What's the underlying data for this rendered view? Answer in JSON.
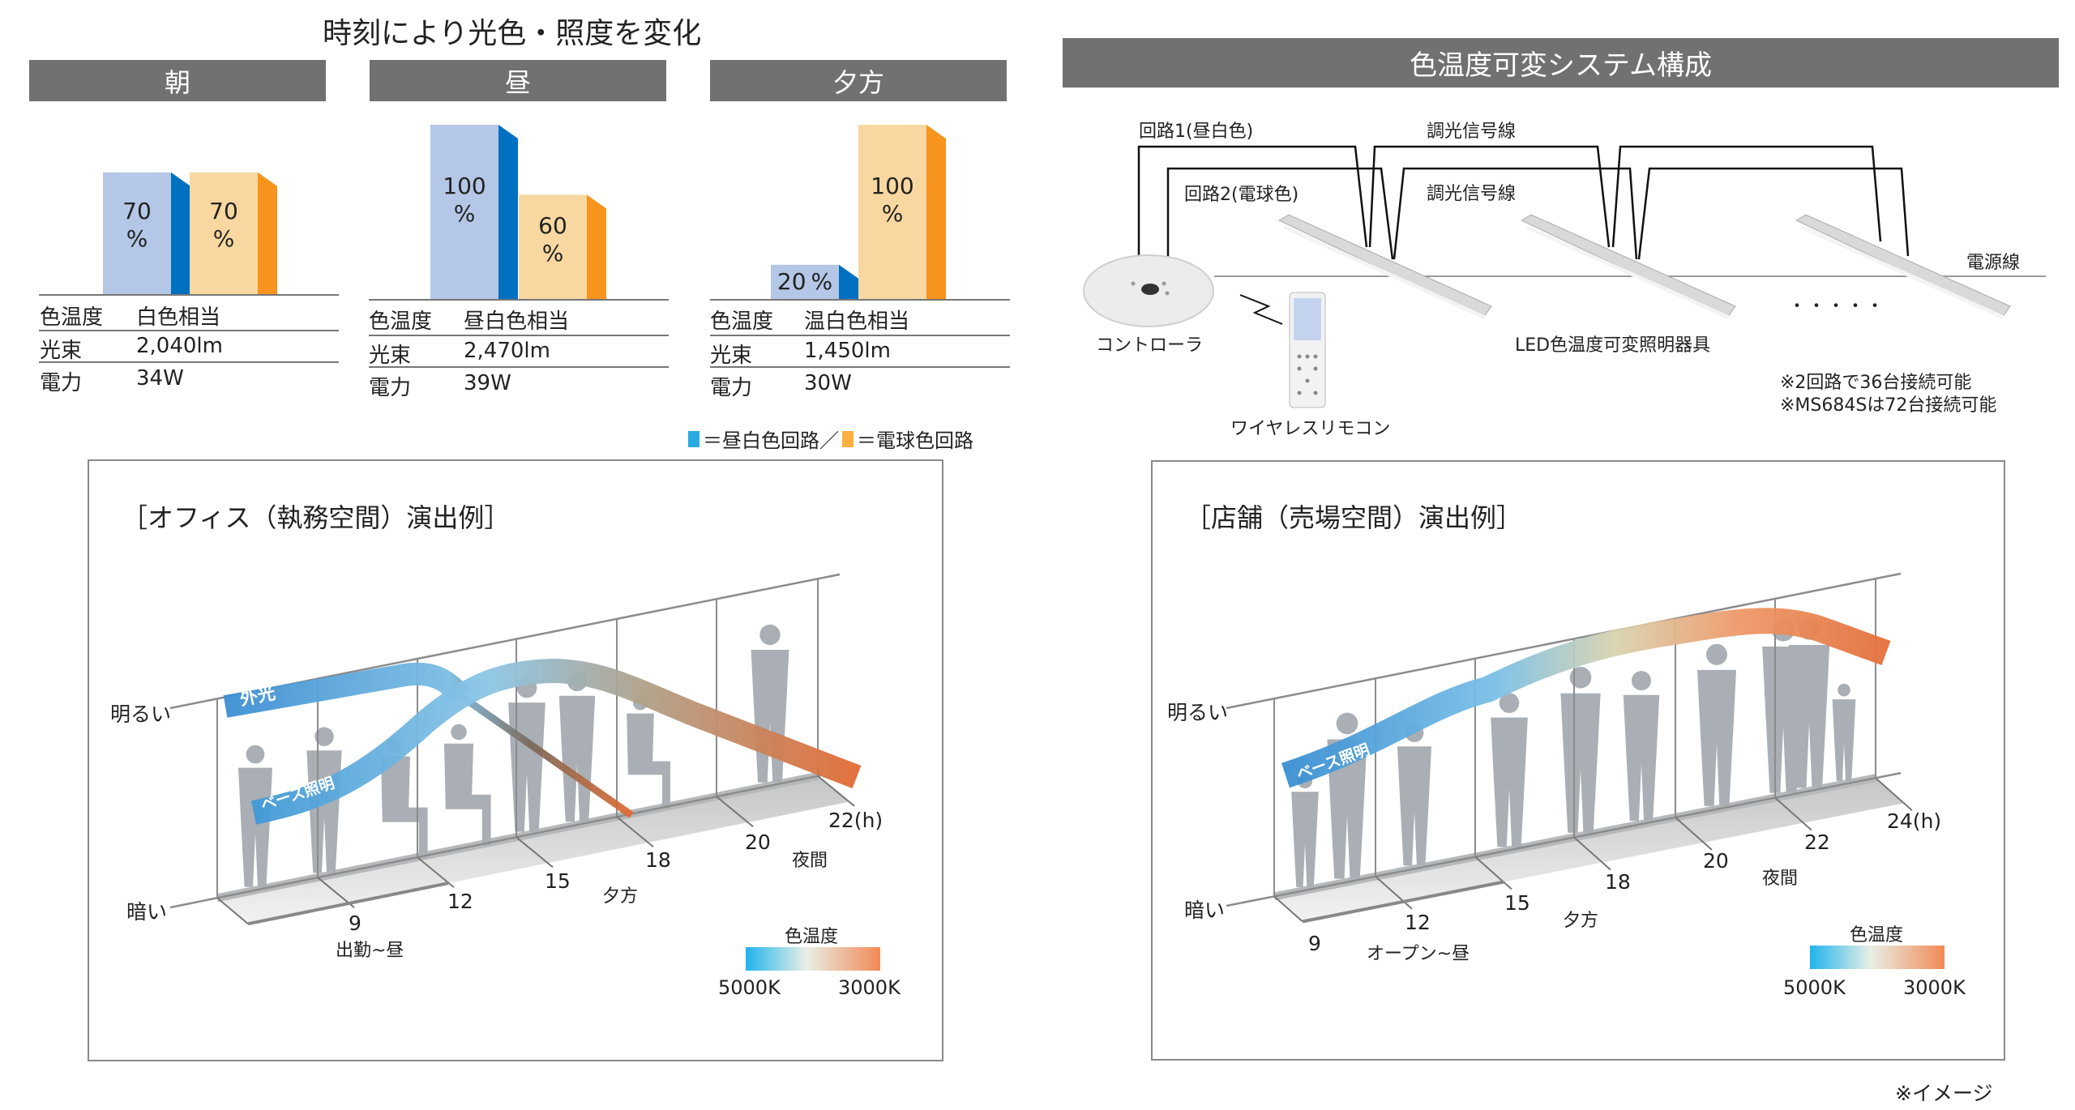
{
  "main_title": "時刻により光色・照度を変化",
  "periods": [
    {
      "label": "朝",
      "blue_pct": 70,
      "orange_pct": 70,
      "rows": [
        {
          "k": "色温度",
          "v": "白色相当"
        },
        {
          "k": "光束",
          "v": "2,040lm"
        },
        {
          "k": "電力",
          "v": "34W"
        }
      ]
    },
    {
      "label": "昼",
      "blue_pct": 100,
      "orange_pct": 60,
      "rows": [
        {
          "k": "色温度",
          "v": "昼白色相当"
        },
        {
          "k": "光束",
          "v": "2,470lm"
        },
        {
          "k": "電力",
          "v": "39W"
        }
      ]
    },
    {
      "label": "夕方",
      "blue_pct": 20,
      "orange_pct": 100,
      "rows": [
        {
          "k": "色温度",
          "v": "温白色相当"
        },
        {
          "k": "光束",
          "v": "1,450lm"
        },
        {
          "k": "電力",
          "v": "30W"
        }
      ]
    }
  ],
  "percent_sign": "%",
  "legend": {
    "blue": "＝昼白色回路／",
    "orange": "＝電球色回路"
  },
  "colors": {
    "blue_front": "#b4c7e7",
    "blue_side": "#0070c0",
    "orange_front": "#f8d8a0",
    "orange_side": "#f7941d",
    "legend_blue": "#29abe2",
    "legend_orange": "#fbb040",
    "header": "#717171"
  },
  "system": {
    "title": "色温度可変システム構成",
    "circuit1": "回路1(昼白色)",
    "circuit2": "回路2(電球色)",
    "signal1": "調光信号線",
    "signal2": "調光信号線",
    "power": "電源線",
    "controller": "コントローラ",
    "remote": "ワイヤレスリモコン",
    "fixture": "LED色温度可変照明器具",
    "dots": "・・・・・",
    "note1": "※2回路で36台接続可能",
    "note2": "※MS684Sは72台接続可能"
  },
  "office": {
    "title": "［オフィス（執務空間）演出例］",
    "bright": "明るい",
    "dark": "暗い",
    "ticks": [
      "9",
      "12",
      "15",
      "18",
      "20",
      "22(h)"
    ],
    "periods": [
      "出勤~昼",
      "夕方",
      "夜間"
    ],
    "ribbon_outside": "外光",
    "ribbon_base": "ベース照明",
    "legend_title": "色温度",
    "legend_low": "5000K",
    "legend_high": "3000K"
  },
  "store": {
    "title": "［店舗（売場空間）演出例］",
    "bright": "明るい",
    "dark": "暗い",
    "ticks": [
      "9",
      "12",
      "15",
      "18",
      "20",
      "22",
      "24(h)"
    ],
    "periods": [
      "オープン~昼",
      "夕方",
      "夜間"
    ],
    "ribbon_base": "ベース照明",
    "legend_title": "色温度",
    "legend_low": "5000K",
    "legend_high": "3000K"
  },
  "footnote": "※イメージ"
}
